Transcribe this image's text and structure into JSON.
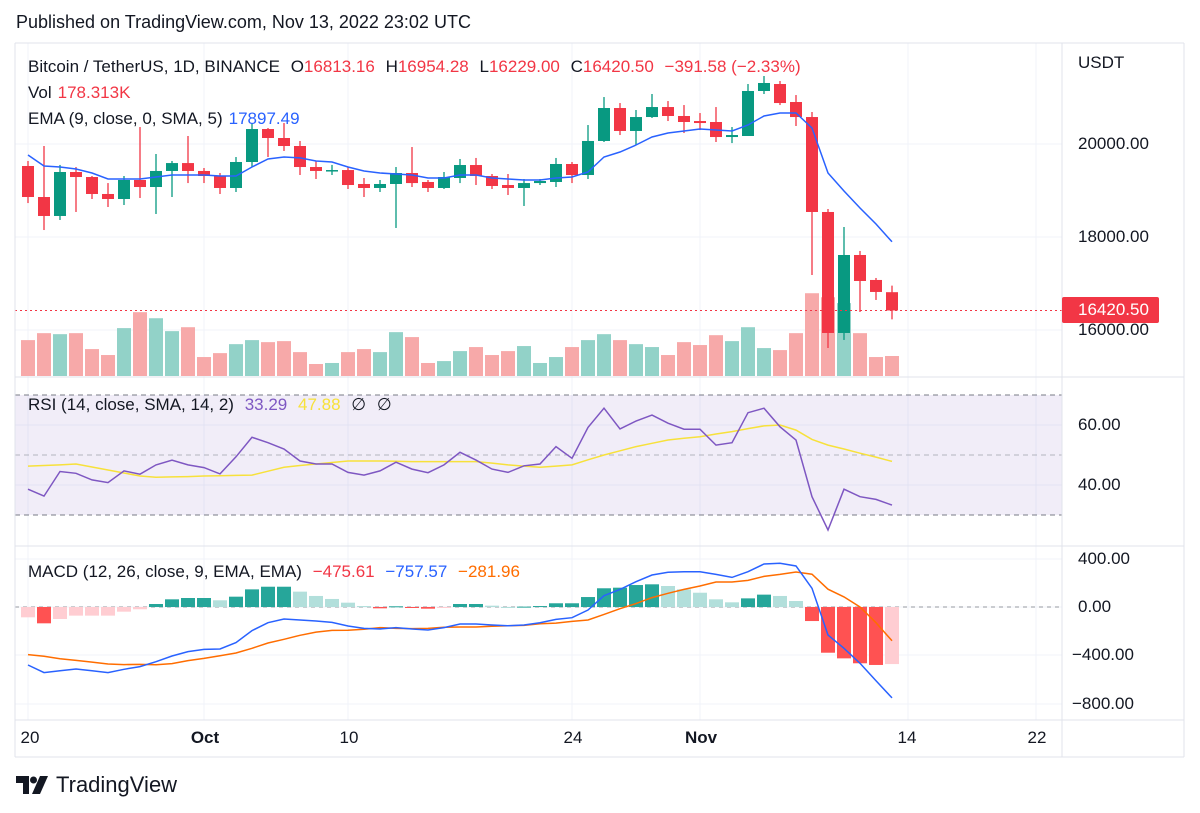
{
  "header": {
    "published": "Published on TradingView.com, Nov 13, 2022 23:02 UTC"
  },
  "legend": {
    "symbol": "Bitcoin / TetherUS, 1D, BINANCE",
    "o_label": "O",
    "o": "16813.16",
    "h_label": "H",
    "h": "16954.28",
    "l_label": "L",
    "l": "16229.00",
    "c_label": "C",
    "c": "16420.50",
    "change": "−391.58 (−2.33%)",
    "vol_label": "Vol",
    "vol": "178.313K",
    "ema_label": "EMA (9, close, 0, SMA, 5)",
    "ema": "17897.49",
    "rsi_label": "RSI (14, close, SMA, 14, 2)",
    "rsi": "33.29",
    "rsi_sma": "47.88",
    "rsi_extra1": "∅",
    "rsi_extra2": "∅",
    "macd_label": "MACD (12, 26, close, 9, EMA, EMA)",
    "macd_hist": "−475.61",
    "macd": "−757.57",
    "macd_signal": "−281.96"
  },
  "price_axis": {
    "currency": "USDT",
    "ticks": [
      "20000.00",
      "18000.00",
      "16000.00"
    ],
    "last_price": "16420.50"
  },
  "rsi_axis": {
    "ticks": [
      "60.00",
      "40.00"
    ]
  },
  "macd_axis": {
    "ticks": [
      "400.00",
      "0.00",
      "−400.00",
      "−800.00"
    ]
  },
  "time_axis": {
    "ticks": [
      "20",
      "Oct",
      "10",
      "24",
      "Nov",
      "14",
      "22"
    ]
  },
  "footer": {
    "brand": "TradingView"
  },
  "colors": {
    "up": "#089981",
    "down": "#f23645",
    "ema": "#2962ff",
    "rsi": "#7e57c2",
    "rsi_sma": "#f7e13b",
    "macd": "#2962ff",
    "signal": "#ff6d00"
  },
  "chart_data": {
    "type": "candlestick",
    "symbol": "BTC/USDT",
    "dates": [
      "2022-09-20",
      "2022-09-21",
      "2022-09-22",
      "2022-09-23",
      "2022-09-24",
      "2022-09-25",
      "2022-09-26",
      "2022-09-27",
      "2022-09-28",
      "2022-09-29",
      "2022-09-30",
      "2022-10-01",
      "2022-10-02",
      "2022-10-03",
      "2022-10-04",
      "2022-10-05",
      "2022-10-06",
      "2022-10-07",
      "2022-10-08",
      "2022-10-09",
      "2022-10-10",
      "2022-10-11",
      "2022-10-12",
      "2022-10-13",
      "2022-10-14",
      "2022-10-15",
      "2022-10-16",
      "2022-10-17",
      "2022-10-18",
      "2022-10-19",
      "2022-10-20",
      "2022-10-21",
      "2022-10-22",
      "2022-10-23",
      "2022-10-24",
      "2022-10-25",
      "2022-10-26",
      "2022-10-27",
      "2022-10-28",
      "2022-10-29",
      "2022-10-30",
      "2022-10-31",
      "2022-11-01",
      "2022-11-02",
      "2022-11-03",
      "2022-11-04",
      "2022-11-05",
      "2022-11-06",
      "2022-11-07",
      "2022-11-08",
      "2022-11-09",
      "2022-11-10",
      "2022-11-11",
      "2022-11-12",
      "2022-11-13"
    ],
    "open": [
      19527,
      18860,
      18452,
      19398,
      19290,
      18925,
      18817,
      19226,
      19075,
      19420,
      19590,
      19420,
      19312,
      19054,
      19613,
      20322,
      20129,
      19957,
      19505,
      19420,
      19440,
      19140,
      19054,
      19140,
      19376,
      19183,
      19054,
      19269,
      19548,
      19312,
      19118,
      19054,
      19160,
      19183,
      19570,
      19333,
      20065,
      20774,
      20280,
      20580,
      20795,
      20602,
      20494,
      20473,
      20150,
      20172,
      21140,
      21290,
      20903,
      20580,
      18538,
      15936,
      17613,
      17076,
      16813.16
    ],
    "high": [
      19635,
      19957,
      19550,
      19505,
      19312,
      19160,
      19312,
      20365,
      19785,
      19635,
      20172,
      19484,
      19376,
      19720,
      20451,
      20344,
      20451,
      20065,
      19635,
      19550,
      19505,
      19269,
      19226,
      19505,
      19935,
      19226,
      19398,
      19678,
      19700,
      19355,
      19355,
      19247,
      19247,
      19700,
      19613,
      20408,
      21010,
      20881,
      20731,
      21075,
      20924,
      20838,
      20666,
      20795,
      20365,
      21290,
      21462,
      21355,
      21053,
      20688,
      18602,
      18215,
      17700,
      17119,
      16954.28
    ],
    "low": [
      18730,
      18150,
      18366,
      18538,
      18817,
      18645,
      18688,
      18839,
      18495,
      18860,
      19160,
      19160,
      18925,
      18968,
      19505,
      19720,
      19850,
      19333,
      19247,
      19333,
      19032,
      18860,
      18968,
      18194,
      19075,
      18968,
      19032,
      19160,
      19118,
      19032,
      18903,
      18667,
      19118,
      19075,
      19160,
      19247,
      20043,
      20193,
      19978,
      20559,
      20494,
      20236,
      20300,
      20043,
      20020,
      20172,
      21075,
      20838,
      20387,
      17183,
      15614,
      15786,
      16388,
      16646,
      16229
    ],
    "close": [
      18860,
      18452,
      19398,
      19290,
      18925,
      18817,
      19226,
      19075,
      19420,
      19590,
      19420,
      19312,
      19054,
      19613,
      20322,
      20129,
      19957,
      19505,
      19420,
      19440,
      19118,
      19054,
      19140,
      19376,
      19160,
      19054,
      19290,
      19548,
      19312,
      19097,
      19054,
      19160,
      19204,
      19570,
      19333,
      20065,
      20774,
      20280,
      20580,
      20795,
      20602,
      20473,
      20451,
      20150,
      20193,
      21140,
      21312,
      20881,
      20580,
      18538,
      15936,
      17613,
      17054,
      16818,
      16420.5
    ],
    "volume_k": [
      320,
      382,
      373,
      382,
      240,
      187,
      427,
      569,
      515,
      400,
      435,
      169,
      204,
      284,
      320,
      302,
      311,
      213,
      107,
      116,
      213,
      240,
      213,
      391,
      347,
      116,
      133,
      222,
      258,
      187,
      222,
      267,
      116,
      169,
      258,
      320,
      373,
      320,
      284,
      258,
      187,
      302,
      276,
      364,
      311,
      435,
      249,
      231,
      382,
      738,
      702,
      650,
      382,
      169,
      178.313
    ],
    "ema": [
      19763,
      19527,
      19505,
      19462,
      19376,
      19247,
      19247,
      19247,
      19290,
      19333,
      19333,
      19333,
      19312,
      19312,
      19505,
      19677,
      19720,
      19700,
      19635,
      19613,
      19505,
      19420,
      19376,
      19355,
      19333,
      19269,
      19269,
      19333,
      19333,
      19269,
      19247,
      19226,
      19226,
      19269,
      19290,
      19398,
      19720,
      19828,
      19978,
      20150,
      20236,
      20280,
      20322,
      20301,
      20280,
      20408,
      20602,
      20666,
      20666,
      20344,
      19376,
      18990,
      18624,
      18280,
      17897.49
    ],
    "rsi": [
      38.6,
      36.3,
      44.5,
      43.9,
      41.7,
      40.8,
      44.7,
      43.6,
      46.7,
      48.3,
      46.7,
      45.8,
      43.7,
      49.4,
      55.9,
      54.1,
      52.0,
      48.0,
      47.0,
      47.0,
      44.2,
      43.3,
      44.7,
      47.6,
      45.3,
      44.1,
      46.7,
      50.9,
      48.3,
      45.3,
      44.2,
      46.4,
      47.0,
      52.8,
      48.9,
      59.2,
      65.6,
      58.7,
      61.3,
      63.3,
      60.6,
      58.6,
      58.6,
      53.3,
      54.1,
      64.1,
      65.6,
      59.4,
      55.0,
      36.1,
      25.0,
      38.6,
      36.1,
      35.2,
      33.29
    ],
    "rsi_sma": [
      46.3,
      46.5,
      46.7,
      47.0,
      46.0,
      45.0,
      44.0,
      43.0,
      42.6,
      42.7,
      42.8,
      43.0,
      43.1,
      43.2,
      43.3,
      44.6,
      45.9,
      46.5,
      47.0,
      47.5,
      48.0,
      48.0,
      48.0,
      47.9,
      47.8,
      47.8,
      47.8,
      47.8,
      47.8,
      47.3,
      46.7,
      46.3,
      45.9,
      46.3,
      46.7,
      48.4,
      50.0,
      51.4,
      52.8,
      53.9,
      55.0,
      55.6,
      56.1,
      57.0,
      57.8,
      58.8,
      59.7,
      60.0,
      58.3,
      55.2,
      53.3,
      52.0,
      50.6,
      49.3,
      47.88
    ],
    "rsi_bands": [
      70,
      50,
      30
    ],
    "macd": [
      -483,
      -547,
      -531,
      -517,
      -531,
      -547,
      -519,
      -497,
      -456,
      -408,
      -372,
      -353,
      -350,
      -297,
      -197,
      -131,
      -100,
      -108,
      -117,
      -128,
      -158,
      -178,
      -183,
      -172,
      -183,
      -192,
      -172,
      -142,
      -142,
      -150,
      -156,
      -150,
      -131,
      -103,
      -89,
      -25,
      94,
      147,
      211,
      267,
      289,
      294,
      294,
      272,
      247,
      294,
      358,
      364,
      342,
      156,
      -233,
      -344,
      -469,
      -614,
      -757.57
    ],
    "histogram": [
      -86,
      -136,
      -100,
      -72,
      -72,
      -72,
      -39,
      -19,
      25,
      64,
      75,
      75,
      56,
      86,
      147,
      169,
      169,
      128,
      92,
      67,
      36,
      8,
      -11,
      6,
      -3,
      -14,
      -3,
      25,
      25,
      11,
      0,
      3,
      8,
      31,
      31,
      83,
      156,
      161,
      183,
      189,
      175,
      147,
      119,
      64,
      39,
      72,
      103,
      92,
      50,
      -117,
      -381,
      -428,
      -469,
      -483,
      -475.61
    ],
    "price_range": [
      15000,
      22000
    ],
    "rsi_range": [
      20,
      75
    ],
    "macd_range": [
      -850,
      450
    ],
    "grid": true
  }
}
